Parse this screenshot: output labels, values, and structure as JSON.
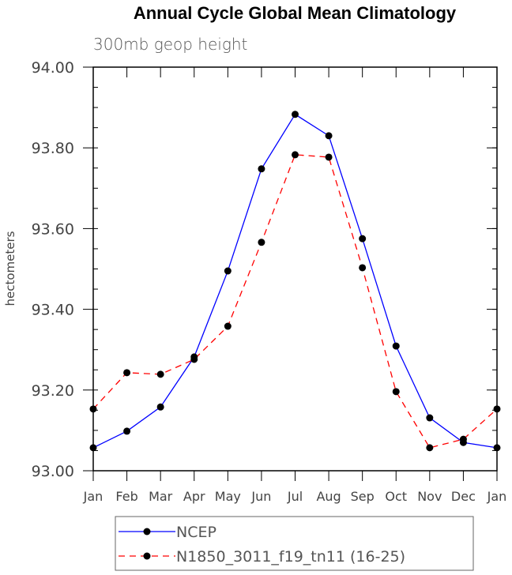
{
  "chart_data": {
    "type": "line",
    "title": "Annual Cycle Global Mean Climatology",
    "subtitle": "300mb geop height",
    "xlabel": "",
    "ylabel": "hectometers",
    "categories": [
      "Jan",
      "Feb",
      "Mar",
      "Apr",
      "May",
      "Jun",
      "Jul",
      "Aug",
      "Sep",
      "Oct",
      "Nov",
      "Dec",
      "Jan"
    ],
    "ylim": [
      93.0,
      94.0
    ],
    "yticks": [
      "93.00",
      "93.20",
      "93.40",
      "93.60",
      "93.80",
      "94.00"
    ],
    "grid": false,
    "legend_position": "bottom",
    "series": [
      {
        "name": "NCEP",
        "color": "#0000ff",
        "dash": "solid",
        "values": [
          93.057,
          93.098,
          93.158,
          93.282,
          93.495,
          93.748,
          93.883,
          93.83,
          93.575,
          93.309,
          93.131,
          93.07,
          93.057
        ]
      },
      {
        "name": "N1850_3011_f19_tn11 (16-25)",
        "color": "#ff0000",
        "dash": "dashed",
        "values": [
          93.153,
          93.243,
          93.239,
          93.276,
          93.358,
          93.566,
          93.783,
          93.777,
          93.503,
          93.196,
          93.057,
          93.078,
          93.153
        ]
      }
    ]
  }
}
